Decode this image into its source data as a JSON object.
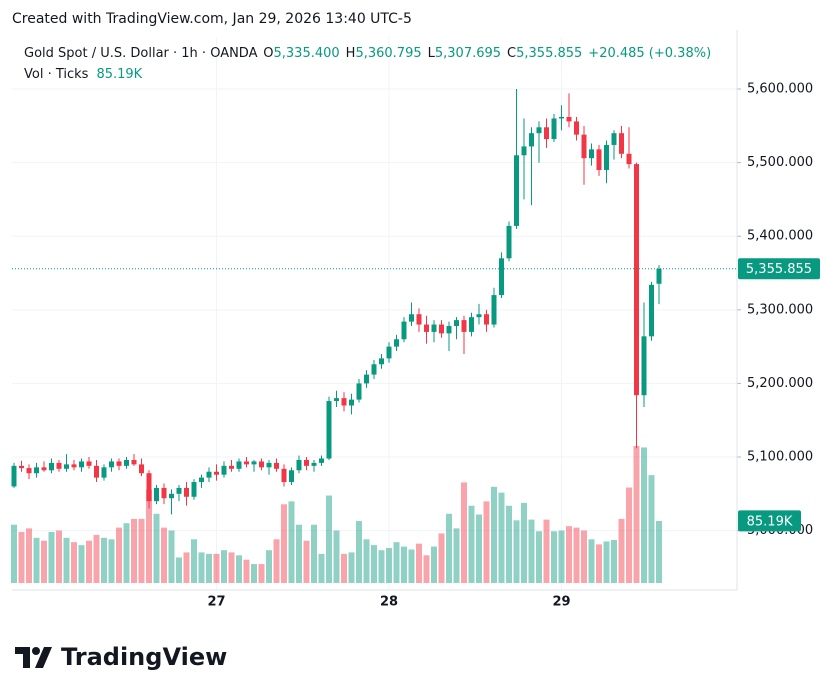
{
  "header": {
    "created": "Created with TradingView.com, Jan 29, 2026 13:40 UTC-5"
  },
  "footer": {
    "brand": "TradingView"
  },
  "chart_data": {
    "type": "candlestick",
    "legend": {
      "symbol": "Gold Spot / U.S. Dollar · 1h · OANDA",
      "ohlc": [
        {
          "key": "O",
          "value": "5,335.400"
        },
        {
          "key": "H",
          "value": "5,360.795"
        },
        {
          "key": "L",
          "value": "5,307.695"
        },
        {
          "key": "C",
          "value": "5,355.855"
        }
      ],
      "change": "+20.485 (+0.38%)"
    },
    "up_color": "#089981",
    "down_color": "#f23645",
    "categories": [
      null,
      null,
      null,
      null,
      null,
      null,
      null,
      null,
      null,
      null,
      null,
      null,
      null,
      null,
      null,
      null,
      null,
      null,
      null,
      null,
      null,
      null,
      null,
      null,
      null,
      null,
      null,
      "27",
      null,
      null,
      null,
      null,
      null,
      null,
      null,
      null,
      null,
      null,
      null,
      null,
      null,
      null,
      null,
      null,
      null,
      null,
      null,
      null,
      null,
      null,
      "28",
      null,
      null,
      null,
      null,
      null,
      null,
      null,
      null,
      null,
      null,
      null,
      null,
      null,
      null,
      null,
      null,
      null,
      null,
      null,
      null,
      null,
      null,
      "29",
      null,
      null,
      null,
      null,
      null,
      null,
      null,
      null,
      null,
      null,
      null,
      null,
      null
    ],
    "open": [
      5060,
      5088,
      5085,
      5078,
      5086,
      5082,
      5092,
      5084,
      5090,
      5086,
      5094,
      5088,
      5072,
      5086,
      5094,
      5088,
      5096,
      5090,
      5078,
      5040,
      5058,
      5044,
      5050,
      5058,
      5046,
      5066,
      5072,
      5080,
      5076,
      5088,
      5084,
      5094,
      5090,
      5094,
      5086,
      5092,
      5084,
      5066,
      5082,
      5096,
      5088,
      5092,
      5098,
      5176,
      5180,
      5170,
      5178,
      5200,
      5212,
      5226,
      5234,
      5250,
      5260,
      5284,
      5294,
      5280,
      5270,
      5280,
      5268,
      5278,
      5286,
      5270,
      5290,
      5294,
      5280,
      5320,
      5370,
      5414,
      5510,
      5522,
      5540,
      5548,
      5532,
      5560,
      5562,
      5556,
      5538,
      5506,
      5518,
      5490,
      5524,
      5540,
      5512,
      5498,
      5184,
      5264,
      5335.4
    ],
    "high": [
      5092,
      5095,
      5090,
      5092,
      5094,
      5098,
      5096,
      5104,
      5096,
      5098,
      5100,
      5096,
      5090,
      5098,
      5098,
      5100,
      5104,
      5098,
      5082,
      5062,
      5064,
      5056,
      5062,
      5066,
      5070,
      5076,
      5086,
      5090,
      5094,
      5096,
      5098,
      5100,
      5096,
      5098,
      5096,
      5098,
      5090,
      5086,
      5102,
      5100,
      5096,
      5102,
      5182,
      5190,
      5188,
      5186,
      5206,
      5218,
      5232,
      5240,
      5256,
      5266,
      5290,
      5310,
      5302,
      5292,
      5286,
      5286,
      5284,
      5290,
      5292,
      5296,
      5308,
      5300,
      5330,
      5378,
      5420,
      5600,
      5560,
      5548,
      5556,
      5560,
      5566,
      5578,
      5594,
      5562,
      5550,
      5526,
      5524,
      5530,
      5544,
      5550,
      5548,
      5500,
      5310,
      5338,
      5360.795
    ],
    "low": [
      5058,
      5080,
      5070,
      5072,
      5080,
      5078,
      5080,
      5080,
      5082,
      5080,
      5084,
      5066,
      5068,
      5080,
      5082,
      5084,
      5088,
      5074,
      5030,
      5036,
      5036,
      5022,
      5040,
      5034,
      5042,
      5058,
      5066,
      5068,
      5072,
      5080,
      5080,
      5086,
      5080,
      5082,
      5076,
      5080,
      5060,
      5062,
      5078,
      5082,
      5080,
      5088,
      5096,
      5168,
      5162,
      5158,
      5174,
      5194,
      5206,
      5220,
      5228,
      5244,
      5256,
      5278,
      5270,
      5254,
      5256,
      5262,
      5244,
      5260,
      5240,
      5264,
      5280,
      5270,
      5276,
      5316,
      5366,
      5410,
      5450,
      5442,
      5500,
      5520,
      5528,
      5544,
      5548,
      5530,
      5470,
      5496,
      5482,
      5472,
      5504,
      5506,
      5492,
      5112,
      5168,
      5258,
      5307.695
    ],
    "close": [
      5088,
      5085,
      5078,
      5086,
      5082,
      5092,
      5084,
      5090,
      5086,
      5094,
      5088,
      5072,
      5086,
      5094,
      5088,
      5096,
      5090,
      5078,
      5040,
      5058,
      5044,
      5050,
      5058,
      5046,
      5066,
      5072,
      5080,
      5076,
      5088,
      5084,
      5094,
      5090,
      5094,
      5086,
      5092,
      5084,
      5066,
      5082,
      5096,
      5088,
      5092,
      5098,
      5176,
      5180,
      5170,
      5178,
      5200,
      5212,
      5226,
      5234,
      5250,
      5260,
      5284,
      5294,
      5280,
      5270,
      5280,
      5268,
      5278,
      5286,
      5270,
      5290,
      5294,
      5280,
      5320,
      5370,
      5414,
      5510,
      5522,
      5540,
      5548,
      5532,
      5560,
      5562,
      5556,
      5538,
      5506,
      5518,
      5490,
      5524,
      5540,
      5512,
      5498,
      5184,
      5264,
      5334,
      5355.855
    ],
    "volume": {
      "name": "Vol · Ticks",
      "values": [
        80,
        70,
        75,
        62,
        58,
        70,
        72,
        62,
        56,
        52,
        58,
        66,
        62,
        60,
        76,
        82,
        88,
        88,
        128,
        95,
        76,
        72,
        35,
        42,
        60,
        42,
        40,
        40,
        45,
        42,
        38,
        32,
        26,
        26,
        45,
        60,
        108,
        112,
        80,
        58,
        80,
        40,
        120,
        72,
        40,
        42,
        85,
        60,
        52,
        45,
        48,
        56,
        50,
        46,
        54,
        38,
        50,
        68,
        95,
        75,
        138,
        106,
        94,
        112,
        132,
        124,
        106,
        86,
        110,
        87,
        71,
        87,
        71,
        72,
        78,
        76,
        72,
        60,
        53,
        57,
        59,
        88,
        131,
        188,
        186,
        148,
        85.19
      ],
      "last_value": {
        "value": 85.19,
        "label": "85.19K"
      }
    },
    "last_price": {
      "value": 5355.855,
      "label": "5,355.855"
    },
    "ylim": [
      4920,
      5670
    ],
    "yticks": [
      {
        "value": 5000,
        "label": "5,000.000"
      },
      {
        "value": 5100,
        "label": "5,100.000"
      },
      {
        "value": 5200,
        "label": "5,200.000"
      },
      {
        "value": 5300,
        "label": "5,300.000"
      },
      {
        "value": 5400,
        "label": "5,400.000"
      },
      {
        "value": 5500,
        "label": "5,500.000"
      },
      {
        "value": 5600,
        "label": "5,600.000"
      }
    ],
    "grid": true
  }
}
